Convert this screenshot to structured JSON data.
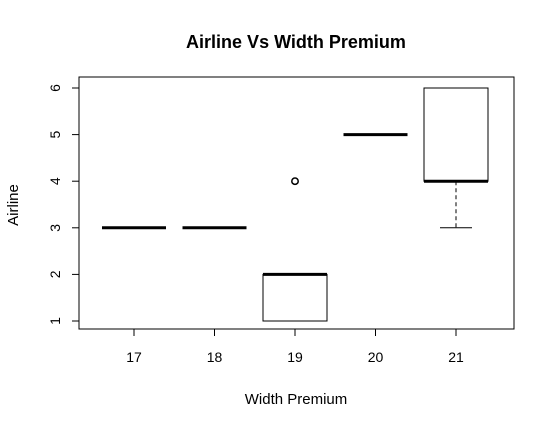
{
  "chart_data": {
    "type": "boxplot",
    "title": "Airline Vs Width Premium",
    "xlabel": "Width Premium",
    "ylabel": "Airline",
    "categories": [
      "17",
      "18",
      "19",
      "20",
      "21"
    ],
    "ylim": [
      1,
      6
    ],
    "yticks": [
      "1",
      "2",
      "3",
      "4",
      "5",
      "6"
    ],
    "boxes": [
      {
        "category": "17",
        "min": 3,
        "q1": 3,
        "median": 3,
        "q3": 3,
        "max": 3,
        "outliers": []
      },
      {
        "category": "18",
        "min": 3,
        "q1": 3,
        "median": 3,
        "q3": 3,
        "max": 3,
        "outliers": []
      },
      {
        "category": "19",
        "min": 1,
        "q1": 1,
        "median": 2,
        "q3": 2,
        "max": 2,
        "outliers": [
          4
        ]
      },
      {
        "category": "20",
        "min": 5,
        "q1": 5,
        "median": 5,
        "q3": 5,
        "max": 5,
        "outliers": []
      },
      {
        "category": "21",
        "min": 3,
        "q1": 4,
        "median": 4,
        "q3": 6,
        "max": 6,
        "outliers": []
      }
    ],
    "grid": false,
    "legend": "none"
  }
}
